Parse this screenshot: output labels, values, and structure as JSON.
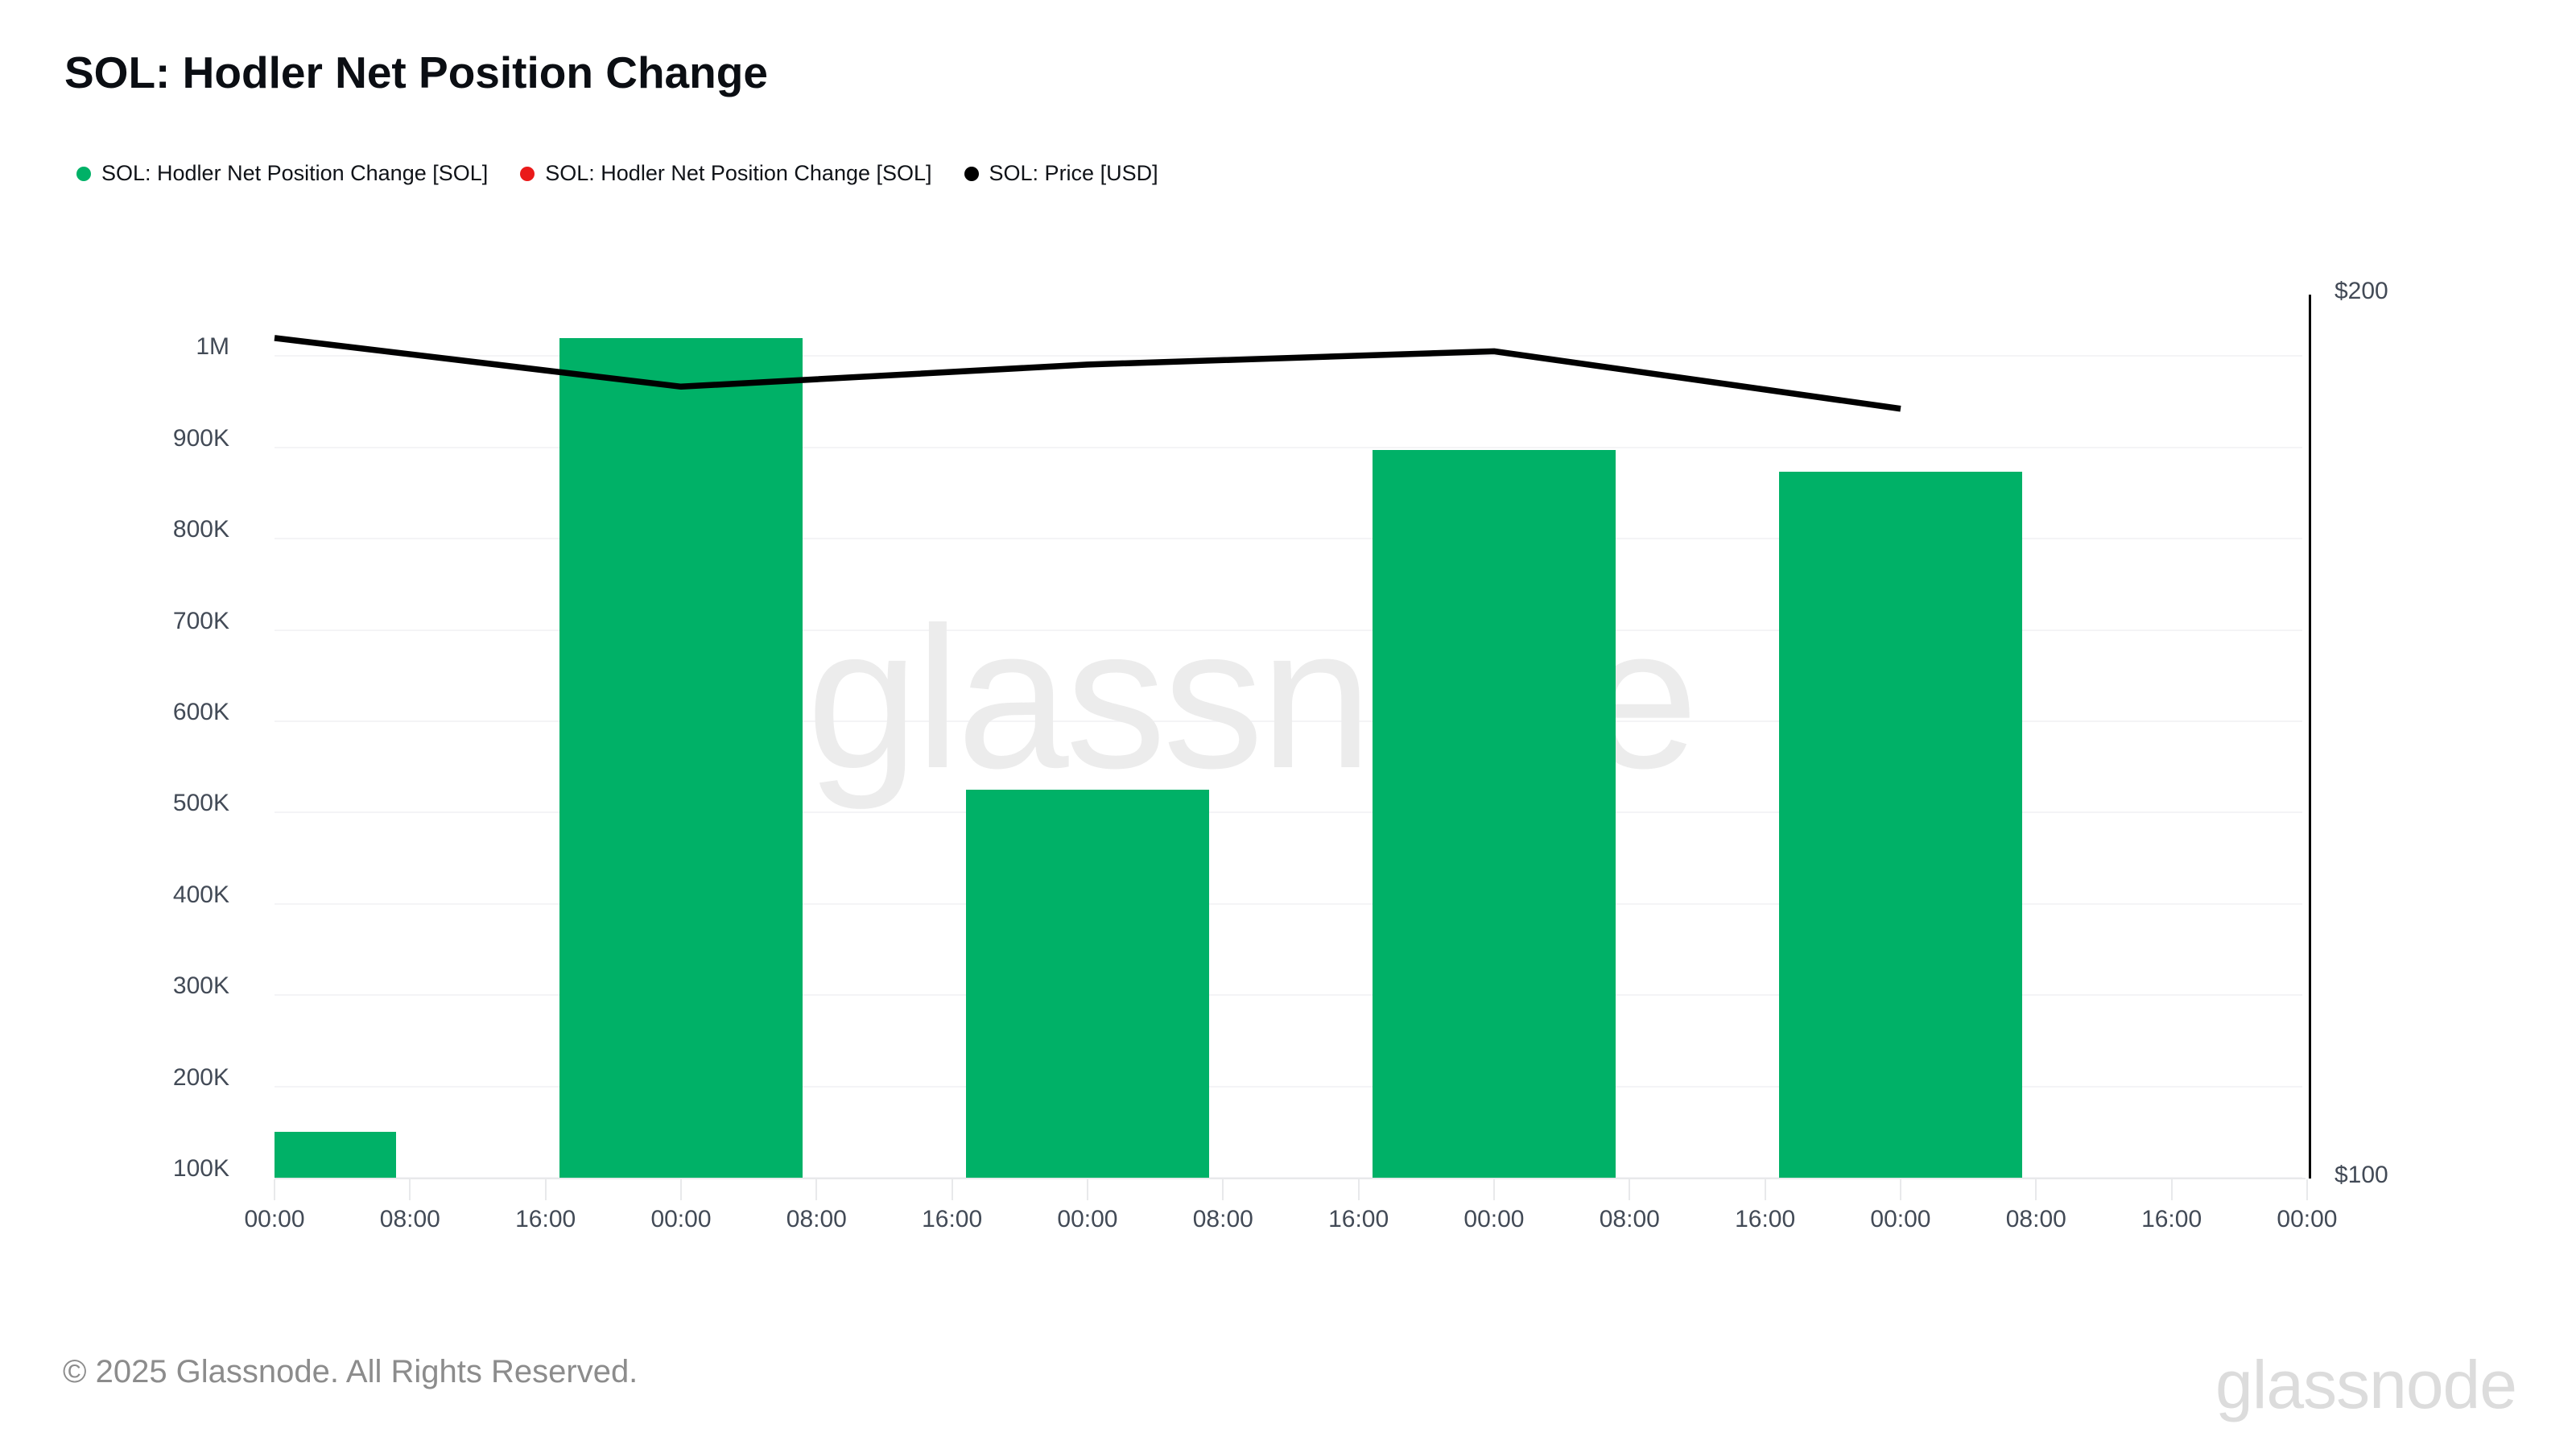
{
  "title": "SOL: Hodler Net Position Change",
  "legend": {
    "position": "top-left",
    "items": [
      {
        "label": "SOL: Hodler Net Position Change [SOL]",
        "color": "#00b167",
        "shape": "dot"
      },
      {
        "label": "SOL: Hodler Net Position Change [SOL]",
        "color": "#ea1a1a",
        "shape": "dot"
      },
      {
        "label": "SOL: Price [USD]",
        "color": "#000000",
        "shape": "dot"
      }
    ]
  },
  "watermark_text": "glassnode",
  "footer": {
    "copyright": "© 2025 Glassnode. All Rights Reserved.",
    "brand_logo_text": "glassnode"
  },
  "colors": {
    "bar_green": "#00b167",
    "legend_red": "#ea1a1a",
    "price_line": "#000000",
    "axis_text": "#424a56",
    "gridline": "#f4f4f6",
    "axis_line": "#e8e9eb",
    "watermark": "#ececec",
    "footer_text": "#8c8c8c",
    "logo_gray": "#dcdcdc"
  },
  "chart_data": {
    "type": "bar",
    "title": "SOL: Hodler Net Position Change",
    "grid": "horizontal-only",
    "legend_position": "top-left",
    "x_axis": {
      "tick_labels": [
        "00:00",
        "08:00",
        "16:00",
        "00:00",
        "08:00",
        "16:00",
        "00:00",
        "08:00",
        "16:00",
        "00:00",
        "08:00",
        "16:00",
        "00:00",
        "08:00",
        "16:00",
        "00:00"
      ],
      "tick_interval_hours": 8,
      "ticks_per_day": 3,
      "num_days_span": 5
    },
    "left_axis": {
      "unit": "SOL",
      "tick_labels": [
        "1M",
        "900K",
        "800K",
        "700K",
        "600K",
        "500K",
        "400K",
        "300K",
        "200K",
        "100K"
      ],
      "tick_values": [
        1000000,
        900000,
        800000,
        700000,
        600000,
        500000,
        400000,
        300000,
        200000,
        100000
      ],
      "min": 100000,
      "max": 1070000
    },
    "right_axis": {
      "unit": "USD",
      "tick_labels": [
        "$200",
        "$100"
      ],
      "tick_values": [
        200,
        100
      ],
      "min": 100,
      "max": 200
    },
    "series": [
      {
        "name": "SOL: Hodler Net Position Change [SOL]",
        "type": "bar",
        "axis": "left",
        "color": "#00b167",
        "day_index": [
          0,
          1,
          2,
          3,
          4
        ],
        "values": [
          150000,
          1020000,
          525000,
          897000,
          873000
        ]
      },
      {
        "name": "SOL: Hodler Net Position Change [SOL]",
        "type": "bar",
        "axis": "left",
        "color": "#ea1a1a",
        "day_index": [],
        "values": []
      },
      {
        "name": "SOL: Price [USD]",
        "type": "line",
        "axis": "right",
        "color": "#000000",
        "day_index": [
          0,
          1,
          2,
          3,
          4
        ],
        "values": [
          195,
          189.5,
          192,
          193.5,
          187
        ]
      }
    ]
  }
}
